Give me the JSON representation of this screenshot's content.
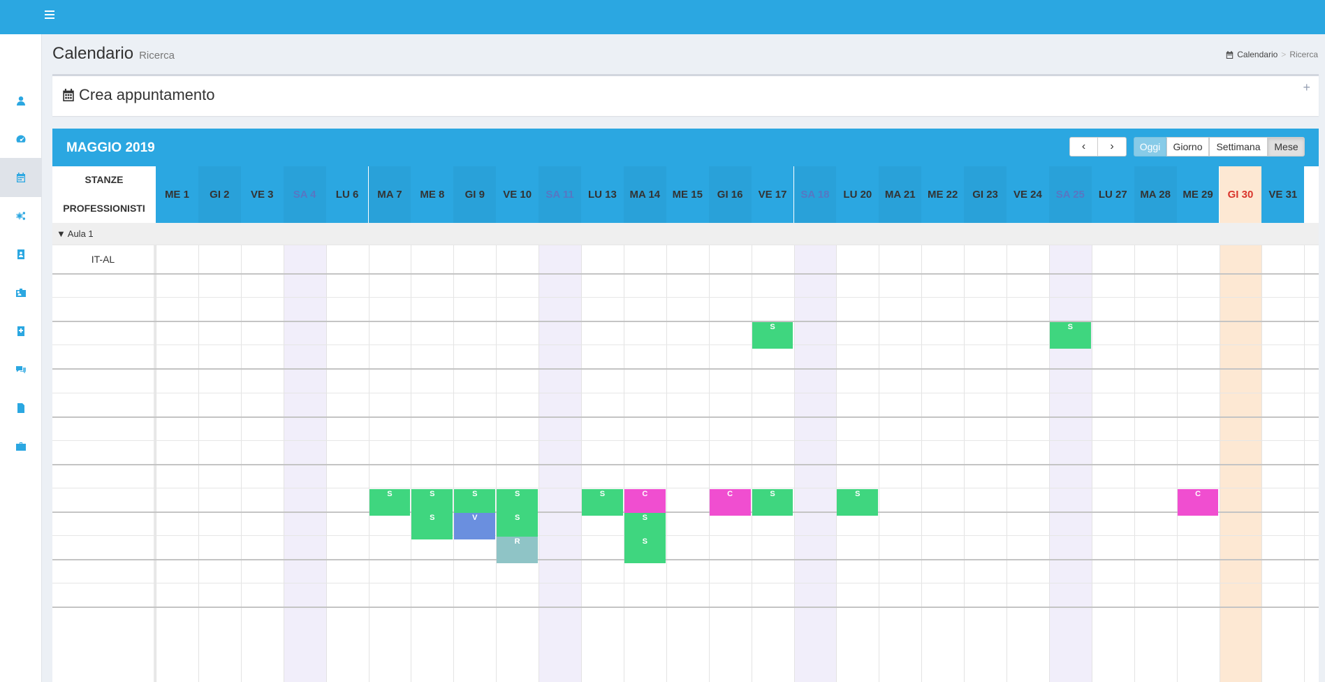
{
  "header": {
    "menu_icon": "hamburger-icon"
  },
  "sidebar": {
    "items": [
      {
        "icon": "user-icon"
      },
      {
        "icon": "dashboard-icon"
      },
      {
        "icon": "calendar-icon",
        "active": true
      },
      {
        "icon": "cogs-icon"
      },
      {
        "icon": "contact-card-icon"
      },
      {
        "icon": "id-badge-icon"
      },
      {
        "icon": "medical-book-icon"
      },
      {
        "icon": "chat-icon"
      },
      {
        "icon": "invoice-icon"
      },
      {
        "icon": "briefcase-icon"
      }
    ]
  },
  "page": {
    "title": "Calendario",
    "subtitle": "Ricerca"
  },
  "breadcrumb": {
    "icon": "calendar-icon",
    "home": "Calendario",
    "current": "Ricerca"
  },
  "create_box": {
    "title": "Crea appuntamento",
    "icon": "calendar-icon",
    "collapse_symbol": "+"
  },
  "calendar": {
    "month_title": "MAGGIO 2019",
    "nav": {
      "prev": "‹",
      "next": "›"
    },
    "views": [
      "Oggi",
      "Giorno",
      "Settimana",
      "Mese"
    ],
    "active_view": "Mese",
    "corner": {
      "line1": "STANZE",
      "line2": "PROFESSIONISTI"
    },
    "days": [
      {
        "label": "ME 1",
        "type": "normal"
      },
      {
        "label": "GI 2",
        "type": "normal"
      },
      {
        "label": "VE 3",
        "type": "normal"
      },
      {
        "label": "SA 4",
        "type": "saturday"
      },
      {
        "label": "LU 6",
        "type": "normal"
      },
      {
        "label": "MA 7",
        "type": "normal"
      },
      {
        "label": "ME 8",
        "type": "normal"
      },
      {
        "label": "GI 9",
        "type": "normal"
      },
      {
        "label": "VE 10",
        "type": "normal"
      },
      {
        "label": "SA 11",
        "type": "saturday"
      },
      {
        "label": "LU 13",
        "type": "normal"
      },
      {
        "label": "MA 14",
        "type": "normal"
      },
      {
        "label": "ME 15",
        "type": "normal"
      },
      {
        "label": "GI 16",
        "type": "normal"
      },
      {
        "label": "VE 17",
        "type": "normal"
      },
      {
        "label": "SA 18",
        "type": "saturday"
      },
      {
        "label": "LU 20",
        "type": "normal"
      },
      {
        "label": "MA 21",
        "type": "normal"
      },
      {
        "label": "ME 22",
        "type": "normal"
      },
      {
        "label": "GI 23",
        "type": "normal"
      },
      {
        "label": "VE 24",
        "type": "normal"
      },
      {
        "label": "SA 25",
        "type": "saturday"
      },
      {
        "label": "LU 27",
        "type": "normal"
      },
      {
        "label": "MA 28",
        "type": "normal"
      },
      {
        "label": "ME 29",
        "type": "normal"
      },
      {
        "label": "GI 30",
        "type": "today"
      },
      {
        "label": "VE 31",
        "type": "normal"
      }
    ],
    "group": {
      "name": "Aula 1",
      "toggle": "▼"
    },
    "rows": [
      {
        "label": "IT-AL"
      },
      {
        "label": ""
      },
      {
        "label": ""
      },
      {
        "label": ""
      },
      {
        "label": ""
      },
      {
        "label": ""
      },
      {
        "label": ""
      },
      {
        "label": ""
      },
      {
        "label": ""
      },
      {
        "label": ""
      },
      {
        "label": ""
      },
      {
        "label": ""
      },
      {
        "label": ""
      },
      {
        "label": ""
      },
      {
        "label": ""
      }
    ],
    "events": [
      {
        "day": 14,
        "row": 3,
        "text": "S",
        "kind": "S"
      },
      {
        "day": 21,
        "row": 3,
        "text": "S",
        "kind": "S"
      },
      {
        "day": 5,
        "row": 10,
        "text": "S",
        "kind": "S"
      },
      {
        "day": 6,
        "row": 10,
        "text": "S",
        "kind": "S"
      },
      {
        "day": 7,
        "row": 10,
        "text": "S",
        "kind": "S"
      },
      {
        "day": 8,
        "row": 10,
        "text": "S",
        "kind": "S"
      },
      {
        "day": 10,
        "row": 10,
        "text": "S",
        "kind": "S"
      },
      {
        "day": 11,
        "row": 10,
        "text": "C",
        "kind": "C"
      },
      {
        "day": 13,
        "row": 10,
        "text": "C",
        "kind": "C"
      },
      {
        "day": 14,
        "row": 10,
        "text": "S",
        "kind": "S"
      },
      {
        "day": 16,
        "row": 10,
        "text": "S",
        "kind": "S"
      },
      {
        "day": 24,
        "row": 10,
        "text": "C",
        "kind": "C"
      },
      {
        "day": 6,
        "row": 11,
        "text": "S",
        "kind": "S"
      },
      {
        "day": 7,
        "row": 11,
        "text": "V",
        "kind": "V"
      },
      {
        "day": 8,
        "row": 11,
        "text": "S",
        "kind": "S"
      },
      {
        "day": 11,
        "row": 11,
        "text": "S",
        "kind": "S"
      },
      {
        "day": 8,
        "row": 12,
        "text": "R",
        "kind": "R"
      },
      {
        "day": 11,
        "row": 12,
        "text": "S",
        "kind": "S"
      }
    ],
    "colors": {
      "S": "#3fd67f",
      "C": "#f04ed0",
      "V": "#6a8fdf",
      "R": "#8fc4c6",
      "header": "#2ba7e1",
      "saturday_col": "#f1eefa",
      "today_col": "#fde8d3",
      "today_text": "#d9342b",
      "saturday_text": "#5777c3"
    }
  }
}
